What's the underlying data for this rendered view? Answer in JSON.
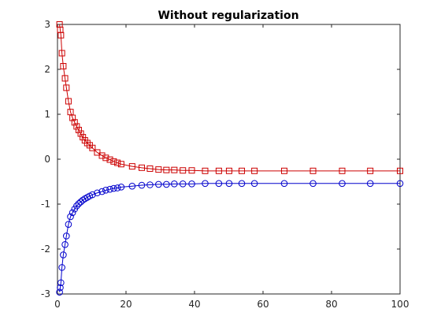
{
  "chart_data": {
    "type": "line",
    "title": "Without regularization",
    "xlabel": "",
    "ylabel": "",
    "xlim": [
      0,
      100
    ],
    "ylim": [
      -3,
      3
    ],
    "x_ticks": [
      0,
      20,
      40,
      60,
      80,
      100
    ],
    "y_ticks": [
      -3,
      -2,
      -1,
      0,
      1,
      2,
      3
    ],
    "grid": false,
    "series": [
      {
        "color": "#cc0000",
        "marker": "square",
        "points": [
          [
            0.6,
            3.0
          ],
          [
            0.8,
            2.88
          ],
          [
            1.0,
            2.76
          ],
          [
            1.3,
            2.36
          ],
          [
            1.7,
            2.07
          ],
          [
            2.2,
            1.8
          ],
          [
            2.6,
            1.59
          ],
          [
            3.2,
            1.29
          ],
          [
            3.8,
            1.05
          ],
          [
            4.4,
            0.92
          ],
          [
            5.0,
            0.82
          ],
          [
            5.6,
            0.73
          ],
          [
            6.2,
            0.65
          ],
          [
            6.8,
            0.57
          ],
          [
            7.4,
            0.49
          ],
          [
            8.0,
            0.42
          ],
          [
            8.7,
            0.36
          ],
          [
            9.4,
            0.31
          ],
          [
            10.2,
            0.25
          ],
          [
            11.6,
            0.15
          ],
          [
            13.0,
            0.08
          ],
          [
            14.1,
            0.03
          ],
          [
            15.3,
            -0.01
          ],
          [
            16.4,
            -0.05
          ],
          [
            17.5,
            -0.08
          ],
          [
            18.6,
            -0.11
          ],
          [
            21.8,
            -0.16
          ],
          [
            24.6,
            -0.19
          ],
          [
            27.0,
            -0.21
          ],
          [
            29.5,
            -0.23
          ],
          [
            31.8,
            -0.24
          ],
          [
            34.1,
            -0.24
          ],
          [
            36.6,
            -0.25
          ],
          [
            39.2,
            -0.25
          ],
          [
            43.1,
            -0.26
          ],
          [
            47.1,
            -0.26
          ],
          [
            50.1,
            -0.26
          ],
          [
            53.8,
            -0.26
          ],
          [
            57.5,
            -0.26
          ],
          [
            66.2,
            -0.26
          ],
          [
            74.6,
            -0.26
          ],
          [
            83.1,
            -0.26
          ],
          [
            91.3,
            -0.26
          ],
          [
            100.0,
            -0.26
          ]
        ]
      },
      {
        "color": "#0000cc",
        "marker": "circle",
        "points": [
          [
            0.6,
            -2.96
          ],
          [
            0.8,
            -2.86
          ],
          [
            1.0,
            -2.75
          ],
          [
            1.3,
            -2.41
          ],
          [
            1.7,
            -2.13
          ],
          [
            2.2,
            -1.9
          ],
          [
            2.6,
            -1.71
          ],
          [
            3.2,
            -1.45
          ],
          [
            3.8,
            -1.28
          ],
          [
            4.4,
            -1.19
          ],
          [
            5.0,
            -1.11
          ],
          [
            5.6,
            -1.04
          ],
          [
            6.2,
            -0.99
          ],
          [
            6.8,
            -0.95
          ],
          [
            7.4,
            -0.91
          ],
          [
            8.0,
            -0.88
          ],
          [
            8.7,
            -0.85
          ],
          [
            9.4,
            -0.82
          ],
          [
            10.2,
            -0.79
          ],
          [
            11.6,
            -0.75
          ],
          [
            13.0,
            -0.72
          ],
          [
            14.1,
            -0.69
          ],
          [
            15.3,
            -0.67
          ],
          [
            16.4,
            -0.65
          ],
          [
            17.5,
            -0.64
          ],
          [
            18.6,
            -0.62
          ],
          [
            21.8,
            -0.6
          ],
          [
            24.6,
            -0.58
          ],
          [
            27.0,
            -0.57
          ],
          [
            29.5,
            -0.56
          ],
          [
            31.8,
            -0.56
          ],
          [
            34.1,
            -0.55
          ],
          [
            36.6,
            -0.55
          ],
          [
            39.2,
            -0.55
          ],
          [
            43.1,
            -0.54
          ],
          [
            47.1,
            -0.54
          ],
          [
            50.1,
            -0.54
          ],
          [
            53.8,
            -0.54
          ],
          [
            57.5,
            -0.54
          ],
          [
            66.2,
            -0.54
          ],
          [
            74.6,
            -0.54
          ],
          [
            83.1,
            -0.54
          ],
          [
            91.3,
            -0.54
          ],
          [
            100.0,
            -0.54
          ]
        ]
      }
    ]
  }
}
